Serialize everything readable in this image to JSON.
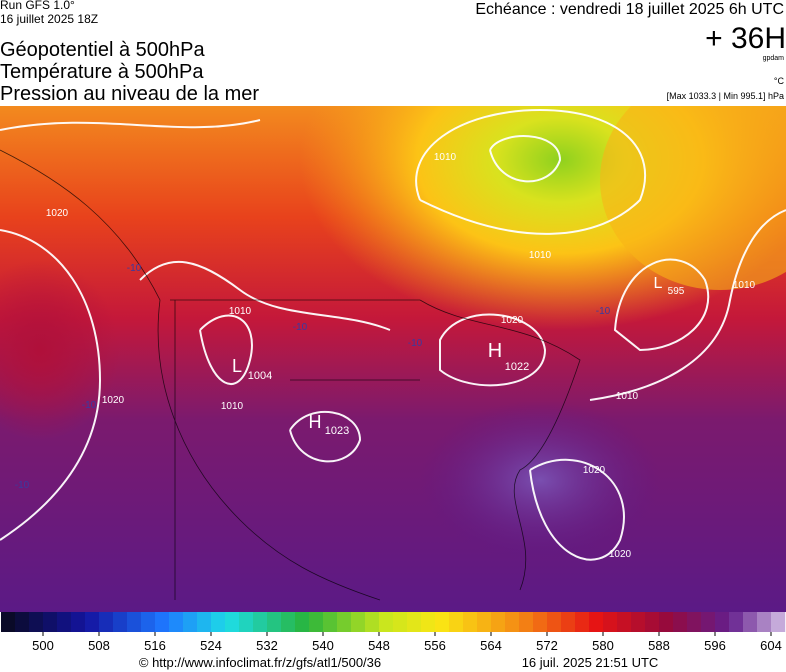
{
  "header": {
    "run": "Run GFS 1.0°",
    "run_date": "16 juillet 2025 18Z",
    "title_lines": [
      "Géopotentiel à 500hPa",
      "Température à 500hPa",
      "Pression au niveau de la mer"
    ],
    "valid": "Echéance : vendredi 18 juillet 2025 6h UTC",
    "lead": "+ 36H",
    "unit_gpdam": "gpdam",
    "unit_temp": "°C",
    "pressure_range": "[Max 1033.3 | Min 995.1] hPa"
  },
  "map": {
    "labels": [
      "H",
      "1022",
      "L",
      "1004",
      "H",
      "1023",
      "L",
      "595",
      "1010",
      "1010",
      "1010",
      "1010",
      "1010",
      "1010",
      "1020",
      "1020",
      "1020",
      "1020",
      "1020",
      "-10",
      "-10",
      "-10",
      "-10",
      "-10",
      "-10"
    ]
  },
  "colorbar": {
    "range": [
      494,
      606
    ],
    "ticks": [
      500,
      508,
      516,
      524,
      532,
      540,
      548,
      556,
      564,
      572,
      580,
      588,
      596,
      604
    ]
  },
  "footer": {
    "url": "© http://www.infoclimat.fr/z/gfs/atl1/500/36",
    "issued": "16 juil. 2025 21:51 UTC"
  }
}
